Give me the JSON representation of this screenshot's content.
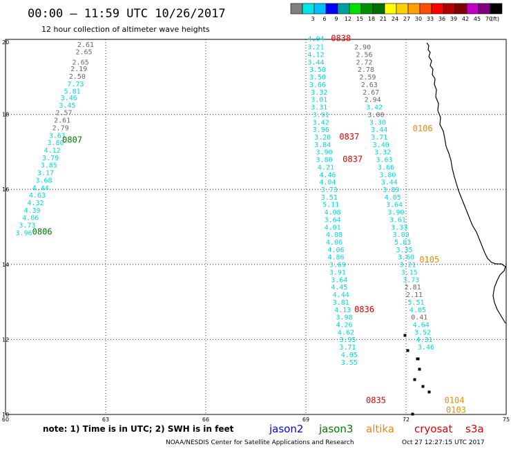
{
  "header": {
    "title": "00:00 – 11:59 UTC 10/26/2017",
    "subtitle": "12 hour collection of altimeter wave heights"
  },
  "legend": {
    "unit": "(ft)",
    "bins": [
      {
        "label": "",
        "color": "#808080"
      },
      {
        "label": "3",
        "color": "#00e5e5"
      },
      {
        "label": "6",
        "color": "#00bfff"
      },
      {
        "label": "9",
        "color": "#0000ff"
      },
      {
        "label": "12",
        "color": "#00a0a0"
      },
      {
        "label": "15",
        "color": "#00e000"
      },
      {
        "label": "18",
        "color": "#009000"
      },
      {
        "label": "21",
        "color": "#007000"
      },
      {
        "label": "24",
        "color": "#ffff00"
      },
      {
        "label": "27",
        "color": "#ffd000"
      },
      {
        "label": "30",
        "color": "#ffa000"
      },
      {
        "label": "33",
        "color": "#ff5000"
      },
      {
        "label": "36",
        "color": "#ff0000"
      },
      {
        "label": "39",
        "color": "#b00000"
      },
      {
        "label": "42",
        "color": "#800000"
      },
      {
        "label": "45",
        "color": "#c000c0"
      },
      {
        "label": "70",
        "color": "#800080"
      },
      {
        "label": "",
        "color": "#000000"
      }
    ]
  },
  "axes": {
    "lon_ticks": [
      "60",
      "63",
      "66",
      "69",
      "72",
      "75"
    ],
    "lat_ticks": [
      "20",
      "18",
      "16",
      "14",
      "12",
      "10"
    ]
  },
  "colors": {
    "cyan": "#00d8d8",
    "gray": "#666666",
    "green": "#007700",
    "red": "#dd0000",
    "orange": "#ee8800",
    "blue": "#0000ee",
    "coast": "#000000"
  },
  "tracks": [
    {
      "label": "0807",
      "label_lon": 61.7,
      "label_lat": 17.25,
      "label_color": "green",
      "points": [
        {
          "lon": 62.15,
          "lat": 19.8,
          "v": "2.61",
          "c": "gray"
        },
        {
          "lon": 62.1,
          "lat": 19.6,
          "v": "2.65",
          "c": "gray"
        },
        {
          "lon": 62.0,
          "lat": 19.33,
          "v": "2.65",
          "c": "gray"
        },
        {
          "lon": 61.95,
          "lat": 19.15,
          "v": "2.19",
          "c": "gray"
        },
        {
          "lon": 61.9,
          "lat": 18.95,
          "v": "2.50",
          "c": "gray"
        },
        {
          "lon": 61.85,
          "lat": 18.75,
          "v": "7.73",
          "c": "cyan"
        },
        {
          "lon": 61.75,
          "lat": 18.55,
          "v": "5.81",
          "c": "cyan"
        },
        {
          "lon": 61.65,
          "lat": 18.38,
          "v": "3.46",
          "c": "cyan"
        },
        {
          "lon": 61.6,
          "lat": 18.18,
          "v": "3.45",
          "c": "cyan"
        },
        {
          "lon": 61.5,
          "lat": 17.98,
          "v": "2.57",
          "c": "gray"
        },
        {
          "lon": 61.45,
          "lat": 17.78,
          "v": "2.61",
          "c": "gray"
        },
        {
          "lon": 61.4,
          "lat": 17.58,
          "v": "2.79",
          "c": "gray"
        },
        {
          "lon": 61.3,
          "lat": 17.38,
          "v": "3.61",
          "c": "cyan"
        },
        {
          "lon": 61.25,
          "lat": 17.18,
          "v": "3.80",
          "c": "cyan"
        },
        {
          "lon": 61.15,
          "lat": 16.98,
          "v": "4.12",
          "c": "cyan"
        },
        {
          "lon": 61.1,
          "lat": 16.78,
          "v": "3.79",
          "c": "cyan"
        }
      ]
    },
    {
      "label": "0806",
      "label_lon": 60.8,
      "label_lat": 14.8,
      "label_color": "green",
      "points": [
        {
          "lon": 61.05,
          "lat": 16.58,
          "v": "3.85",
          "c": "cyan"
        },
        {
          "lon": 60.95,
          "lat": 16.38,
          "v": "3.17",
          "c": "cyan"
        },
        {
          "lon": 60.9,
          "lat": 16.18,
          "v": "3.68",
          "c": "cyan"
        },
        {
          "lon": 60.8,
          "lat": 15.98,
          "v": "4.44",
          "c": "cyan"
        },
        {
          "lon": 60.7,
          "lat": 15.78,
          "v": "4.63",
          "c": "cyan"
        },
        {
          "lon": 60.65,
          "lat": 15.58,
          "v": "4.32",
          "c": "cyan"
        },
        {
          "lon": 60.55,
          "lat": 15.38,
          "v": "4.39",
          "c": "cyan"
        },
        {
          "lon": 60.5,
          "lat": 15.18,
          "v": "4.06",
          "c": "cyan"
        },
        {
          "lon": 60.4,
          "lat": 14.98,
          "v": "3.73",
          "c": "cyan"
        },
        {
          "lon": 60.3,
          "lat": 14.78,
          "v": "3.96",
          "c": "cyan"
        }
      ]
    },
    {
      "label": "0838",
      "label_lon": 69.75,
      "label_lat": 19.95,
      "label_color": "red",
      "points": [
        {
          "lon": 69.05,
          "lat": 19.95,
          "v": "4.04",
          "c": "cyan"
        },
        {
          "lon": 69.05,
          "lat": 19.73,
          "v": "3.21",
          "c": "cyan"
        },
        {
          "lon": 69.05,
          "lat": 19.53,
          "v": "4.12",
          "c": "cyan"
        },
        {
          "lon": 69.05,
          "lat": 19.33,
          "v": "3.44",
          "c": "cyan"
        },
        {
          "lon": 69.1,
          "lat": 19.13,
          "v": "3.50",
          "c": "cyan"
        },
        {
          "lon": 69.1,
          "lat": 18.93,
          "v": "3.50",
          "c": "cyan"
        },
        {
          "lon": 69.1,
          "lat": 18.73,
          "v": "3.66",
          "c": "cyan"
        },
        {
          "lon": 69.15,
          "lat": 18.53,
          "v": "3.32",
          "c": "cyan"
        },
        {
          "lon": 69.15,
          "lat": 18.33,
          "v": "3.01",
          "c": "cyan"
        },
        {
          "lon": 69.15,
          "lat": 18.13,
          "v": "3.31",
          "c": "cyan"
        },
        {
          "lon": 69.2,
          "lat": 17.93,
          "v": "3.91",
          "c": "cyan"
        },
        {
          "lon": 69.2,
          "lat": 17.73,
          "v": "3.42",
          "c": "cyan"
        },
        {
          "lon": 69.2,
          "lat": 17.53,
          "v": "3.96",
          "c": "cyan"
        }
      ]
    },
    {
      "label": "0837",
      "label_lon": 70.0,
      "label_lat": 17.33,
      "label_color": "red",
      "points": [
        {
          "lon": 69.25,
          "lat": 17.33,
          "v": "3.20",
          "c": "cyan"
        },
        {
          "lon": 69.25,
          "lat": 17.13,
          "v": "3.84",
          "c": "cyan"
        },
        {
          "lon": 69.3,
          "lat": 16.93,
          "v": "3.90",
          "c": "cyan"
        },
        {
          "lon": 69.3,
          "lat": 16.73,
          "v": "3.80",
          "c": "cyan"
        },
        {
          "lon": 69.35,
          "lat": 16.53,
          "v": "4.21",
          "c": "cyan"
        },
        {
          "lon": 69.4,
          "lat": 16.33,
          "v": "4.46",
          "c": "cyan"
        },
        {
          "lon": 69.4,
          "lat": 16.13,
          "v": "4.04",
          "c": "cyan"
        },
        {
          "lon": 69.45,
          "lat": 15.93,
          "v": "3.73",
          "c": "cyan"
        },
        {
          "lon": 69.45,
          "lat": 15.73,
          "v": "3.51",
          "c": "cyan"
        },
        {
          "lon": 69.5,
          "lat": 15.53,
          "v": "5.11",
          "c": "cyan"
        },
        {
          "lon": 69.55,
          "lat": 15.33,
          "v": "4.08",
          "c": "cyan"
        },
        {
          "lon": 69.55,
          "lat": 15.13,
          "v": "3.64",
          "c": "cyan"
        },
        {
          "lon": 69.55,
          "lat": 14.93,
          "v": "4.01",
          "c": "cyan"
        },
        {
          "lon": 69.6,
          "lat": 14.73,
          "v": "4.08",
          "c": "cyan"
        }
      ]
    },
    {
      "label": "0837",
      "label_lon": 70.1,
      "label_lat": 16.73,
      "label_color": "red",
      "points": []
    },
    {
      "label": "0836",
      "label_lon": 70.45,
      "label_lat": 12.73,
      "label_color": "red",
      "points": [
        {
          "lon": 69.6,
          "lat": 14.53,
          "v": "4.06",
          "c": "cyan"
        },
        {
          "lon": 69.65,
          "lat": 14.33,
          "v": "4.06",
          "c": "cyan"
        },
        {
          "lon": 69.65,
          "lat": 14.13,
          "v": "4.86",
          "c": "cyan"
        },
        {
          "lon": 69.7,
          "lat": 13.93,
          "v": "3.69",
          "c": "cyan"
        },
        {
          "lon": 69.7,
          "lat": 13.73,
          "v": "3.91",
          "c": "cyan"
        },
        {
          "lon": 69.75,
          "lat": 13.53,
          "v": "3.64",
          "c": "cyan"
        },
        {
          "lon": 69.75,
          "lat": 13.33,
          "v": "4.45",
          "c": "cyan"
        },
        {
          "lon": 69.8,
          "lat": 13.13,
          "v": "4.44",
          "c": "cyan"
        },
        {
          "lon": 69.8,
          "lat": 12.93,
          "v": "3.81",
          "c": "cyan"
        },
        {
          "lon": 69.85,
          "lat": 12.73,
          "v": "4.13",
          "c": "cyan"
        },
        {
          "lon": 69.9,
          "lat": 12.53,
          "v": "3.98",
          "c": "cyan"
        },
        {
          "lon": 69.9,
          "lat": 12.33,
          "v": "4.26",
          "c": "cyan"
        }
      ]
    },
    {
      "label": "0835",
      "label_lon": 70.8,
      "label_lat": 10.3,
      "label_color": "red",
      "points": [
        {
          "lon": 69.95,
          "lat": 12.13,
          "v": "4.62",
          "c": "cyan"
        },
        {
          "lon": 70.0,
          "lat": 11.93,
          "v": "3.95",
          "c": "cyan"
        },
        {
          "lon": 70.0,
          "lat": 11.73,
          "v": "3.71",
          "c": "cyan"
        },
        {
          "lon": 70.05,
          "lat": 11.53,
          "v": "4.05",
          "c": "cyan"
        },
        {
          "lon": 70.05,
          "lat": 11.33,
          "v": "3.55",
          "c": "cyan"
        }
      ]
    },
    {
      "label": "0106",
      "label_lon": 72.2,
      "label_lat": 17.55,
      "label_color": "orange",
      "points": [
        {
          "lon": 70.45,
          "lat": 19.73,
          "v": "2.90",
          "c": "gray"
        },
        {
          "lon": 70.5,
          "lat": 19.53,
          "v": "2.56",
          "c": "gray"
        },
        {
          "lon": 70.5,
          "lat": 19.33,
          "v": "2.72",
          "c": "gray"
        },
        {
          "lon": 70.55,
          "lat": 19.13,
          "v": "2.78",
          "c": "gray"
        },
        {
          "lon": 70.6,
          "lat": 18.93,
          "v": "2.59",
          "c": "gray"
        },
        {
          "lon": 70.65,
          "lat": 18.73,
          "v": "2.63",
          "c": "gray"
        },
        {
          "lon": 70.7,
          "lat": 18.53,
          "v": "2.67",
          "c": "gray"
        },
        {
          "lon": 70.75,
          "lat": 18.33,
          "v": "2.94",
          "c": "gray"
        },
        {
          "lon": 70.8,
          "lat": 18.13,
          "v": "3.42",
          "c": "cyan"
        },
        {
          "lon": 70.85,
          "lat": 17.93,
          "v": "3.00",
          "c": "gray"
        },
        {
          "lon": 70.9,
          "lat": 17.73,
          "v": "3.30",
          "c": "cyan"
        },
        {
          "lon": 70.95,
          "lat": 17.53,
          "v": "3.44",
          "c": "cyan"
        },
        {
          "lon": 70.95,
          "lat": 17.33,
          "v": "3.71",
          "c": "cyan"
        }
      ]
    },
    {
      "label": "0105",
      "label_lon": 72.4,
      "label_lat": 14.05,
      "label_color": "orange",
      "points": [
        {
          "lon": 71.0,
          "lat": 17.13,
          "v": "3.40",
          "c": "cyan"
        },
        {
          "lon": 71.05,
          "lat": 16.93,
          "v": "3.32",
          "c": "cyan"
        },
        {
          "lon": 71.1,
          "lat": 16.73,
          "v": "3.63",
          "c": "cyan"
        },
        {
          "lon": 71.15,
          "lat": 16.53,
          "v": "3.66",
          "c": "cyan"
        },
        {
          "lon": 71.2,
          "lat": 16.33,
          "v": "3.80",
          "c": "cyan"
        },
        {
          "lon": 71.25,
          "lat": 16.13,
          "v": "3.44",
          "c": "cyan"
        },
        {
          "lon": 71.3,
          "lat": 15.93,
          "v": "3.89",
          "c": "cyan"
        },
        {
          "lon": 71.35,
          "lat": 15.73,
          "v": "4.05",
          "c": "cyan"
        },
        {
          "lon": 71.4,
          "lat": 15.53,
          "v": "3.64",
          "c": "cyan"
        },
        {
          "lon": 71.45,
          "lat": 15.33,
          "v": "3.90",
          "c": "cyan"
        },
        {
          "lon": 71.5,
          "lat": 15.13,
          "v": "3.61",
          "c": "cyan"
        },
        {
          "lon": 71.55,
          "lat": 14.93,
          "v": "3.33",
          "c": "cyan"
        },
        {
          "lon": 71.6,
          "lat": 14.73,
          "v": "3.09",
          "c": "cyan"
        },
        {
          "lon": 71.65,
          "lat": 14.53,
          "v": "5.03",
          "c": "cyan"
        },
        {
          "lon": 71.7,
          "lat": 14.33,
          "v": "3.35",
          "c": "cyan"
        },
        {
          "lon": 71.75,
          "lat": 14.13,
          "v": "3.60",
          "c": "cyan"
        },
        {
          "lon": 71.8,
          "lat": 13.93,
          "v": "3.21",
          "c": "cyan"
        },
        {
          "lon": 71.85,
          "lat": 13.73,
          "v": "3.15",
          "c": "cyan"
        },
        {
          "lon": 71.9,
          "lat": 13.53,
          "v": "3.73",
          "c": "cyan"
        },
        {
          "lon": 71.95,
          "lat": 13.33,
          "v": "2.81",
          "c": "gray"
        },
        {
          "lon": 72.0,
          "lat": 13.13,
          "v": "2.11",
          "c": "gray"
        }
      ]
    },
    {
      "label": "0104",
      "label_lon": 73.15,
      "label_lat": 10.3,
      "label_color": "orange",
      "points": [
        {
          "lon": 72.05,
          "lat": 12.93,
          "v": "5.51",
          "c": "cyan"
        },
        {
          "lon": 72.1,
          "lat": 12.73,
          "v": "4.05",
          "c": "cyan"
        },
        {
          "lon": 72.15,
          "lat": 12.53,
          "v": "0.41",
          "c": "gray"
        },
        {
          "lon": 72.2,
          "lat": 12.33,
          "v": "4.64",
          "c": "cyan"
        },
        {
          "lon": 72.25,
          "lat": 12.13,
          "v": "3.52",
          "c": "cyan"
        },
        {
          "lon": 72.3,
          "lat": 11.93,
          "v": "4.31",
          "c": "cyan"
        }
      ]
    },
    {
      "label": "0103",
      "label_lon": 73.2,
      "label_lat": 10.05,
      "label_color": "orange",
      "points": [
        {
          "lon": 72.35,
          "lat": 11.73,
          "v": "3.46",
          "c": "cyan"
        }
      ]
    }
  ],
  "footer": {
    "note": "note:  1) Time is in UTC; 2) SWH is in feet",
    "satellites": [
      {
        "name": "jason2",
        "color": "blue"
      },
      {
        "name": "jason3",
        "color": "green"
      },
      {
        "name": "altika",
        "color": "orange"
      },
      {
        "name": "cryosat",
        "color": "red"
      },
      {
        "name": "s3a",
        "color": "red"
      }
    ],
    "credit": "NOAA/NESDIS Center for Satellite Applications and Research",
    "generated": "Oct 27 12:27:15 UTC 2017"
  }
}
